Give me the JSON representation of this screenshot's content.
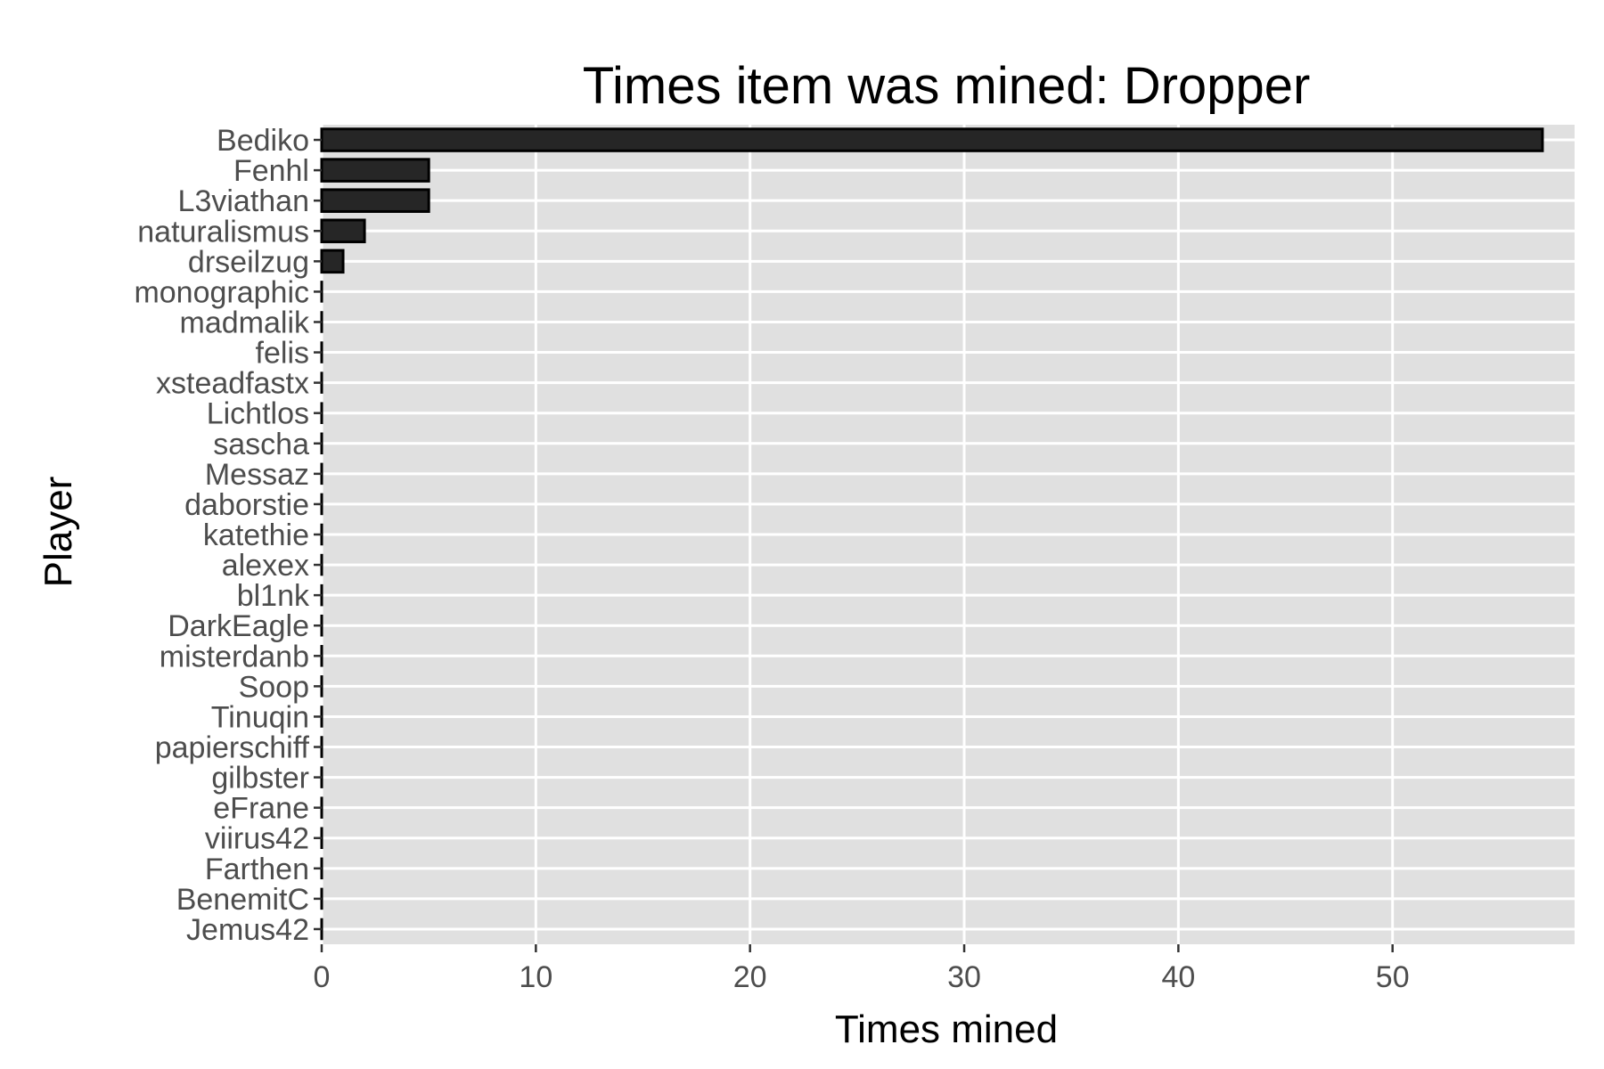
{
  "chart_data": {
    "type": "bar",
    "orientation": "horizontal",
    "title": "Times item was mined: Dropper",
    "xlabel": "Times mined",
    "ylabel": "Player",
    "xlim": [
      0,
      58.5
    ],
    "x_ticks": [
      0,
      10,
      20,
      30,
      40,
      50
    ],
    "grid": true,
    "legend": "none",
    "colors": {
      "panel_background": "#e0e0e0",
      "grid": "#ffffff",
      "bar_fill": "#262626",
      "bar_outline": "#000000",
      "tick_label": "#4d4d4d",
      "tick_mark": "#333333",
      "text": "#000000"
    },
    "categories": [
      "Bediko",
      "Fenhl",
      "L3viathan",
      "naturalismus",
      "drseilzug",
      "monographic",
      "madmalik",
      "felis",
      "xsteadfastx",
      "Lichtlos",
      "sascha",
      "Messaz",
      "daborstie",
      "katethie",
      "alexex",
      "bl1nk",
      "DarkEagle",
      "misterdanb",
      "Soop",
      "Tinuqin",
      "papierschiff",
      "gilbster",
      "eFrane",
      "viirus42",
      "Farthen",
      "BenemitC",
      "Jemus42"
    ],
    "values": [
      57,
      5,
      5,
      2,
      1,
      0,
      0,
      0,
      0,
      0,
      0,
      0,
      0,
      0,
      0,
      0,
      0,
      0,
      0,
      0,
      0,
      0,
      0,
      0,
      0,
      0,
      0
    ]
  }
}
